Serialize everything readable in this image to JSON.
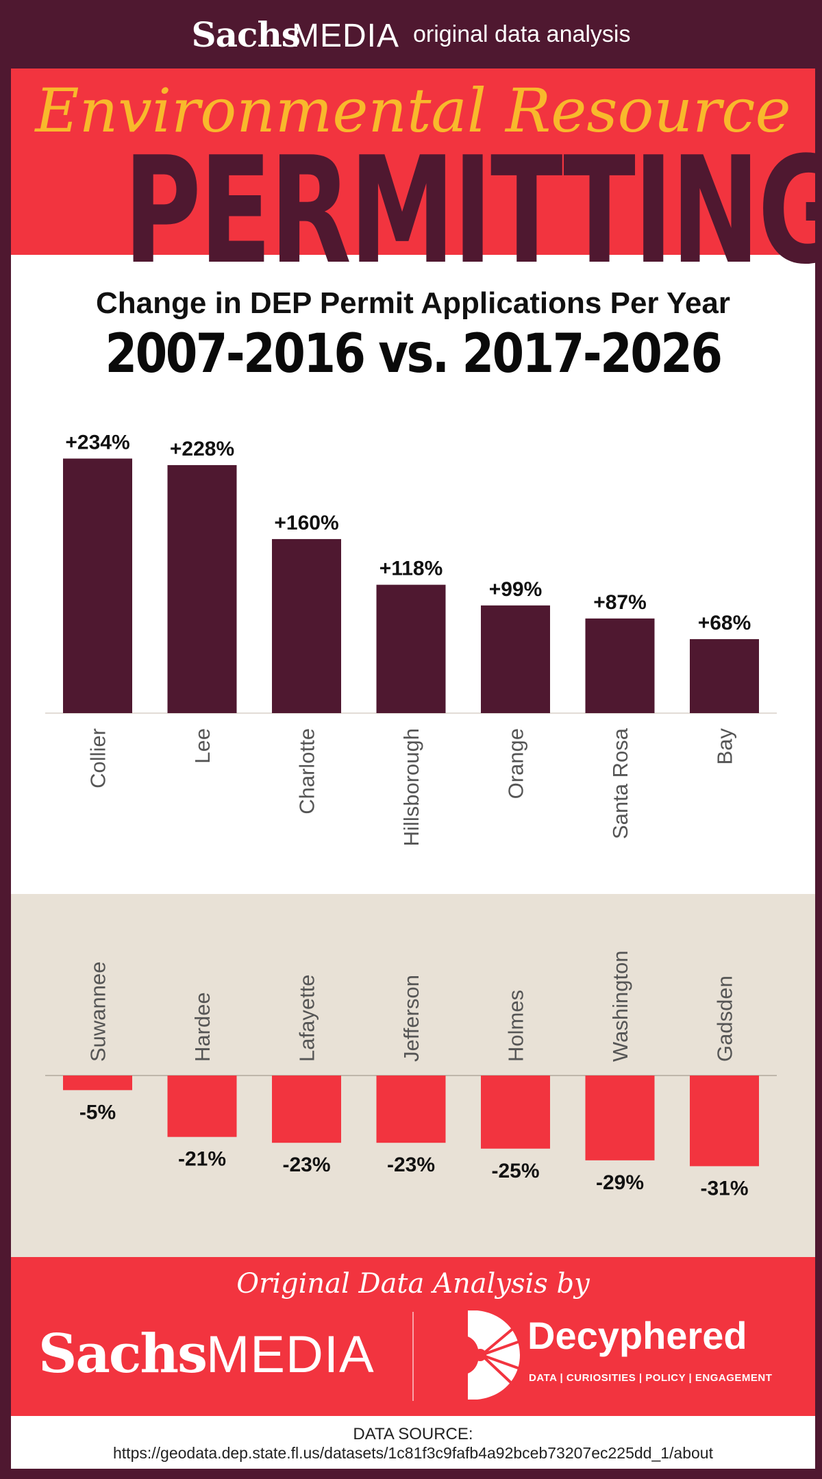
{
  "header": {
    "brand_bold": "Sachs",
    "brand_light": "MEDIA",
    "tagline": "original data analysis"
  },
  "hero": {
    "overline": "Environmental Resource",
    "title": "PERMITTING"
  },
  "subtitle": "Change in DEP Permit Applications Per Year",
  "headline": "2007-2016 vs. 2017-2026",
  "colors": {
    "maroon": "#4f1830",
    "red": "#f2343f",
    "gold": "#f8b92c",
    "beige": "#e8e1d6"
  },
  "chart_data": {
    "type": "bar",
    "unit": "%",
    "categories": [
      "Collier",
      "Lee",
      "Charlotte",
      "Hillsborough",
      "Orange",
      "Santa Rosa",
      "Bay",
      "Suwannee",
      "Hardee",
      "Lafayette",
      "Jefferson",
      "Holmes",
      "Washington",
      "Gadsden"
    ],
    "values": [
      234,
      228,
      160,
      118,
      99,
      87,
      68,
      -5,
      -21,
      -23,
      -23,
      -25,
      -29,
      -31
    ],
    "data_labels": [
      "+234%",
      "+228%",
      "+160%",
      "+118%",
      "+99%",
      "+87%",
      "+68%",
      "-5%",
      "-21%",
      "-23%",
      "-23%",
      "-25%",
      "-29%",
      "-31%"
    ],
    "title": "Change in DEP Permit Applications Per Year",
    "subtitle": "2007-2016 vs. 2017-2026",
    "xlabel": "",
    "ylabel": "",
    "grid": false,
    "legend": "none"
  },
  "footer": {
    "credit": "Original Data Analysis by",
    "sachs_bold": "Sachs",
    "sachs_light": "MEDIA",
    "partner_name": "Decyphered",
    "partner_tagline": "DATA | CURIOSITIES | POLICY | ENGAGEMENT"
  },
  "source": {
    "label": "DATA SOURCE:",
    "url": "https://geodata.dep.state.fl.us/datasets/1c81f3c9fafb4a92bceb73207ec225dd_1/about"
  }
}
